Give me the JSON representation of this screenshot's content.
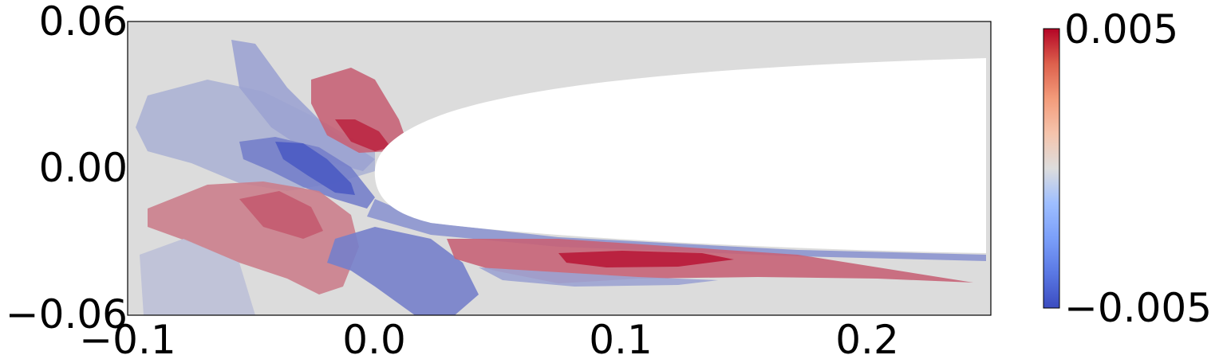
{
  "chart_data": {
    "type": "heatmap",
    "title": "",
    "xlabel": "",
    "ylabel": "",
    "xlim": [
      -0.1,
      0.25
    ],
    "ylim": [
      -0.06,
      0.06
    ],
    "x_ticks": [
      {
        "value": -0.1,
        "label": "−0.1"
      },
      {
        "value": 0.0,
        "label": "0.0"
      },
      {
        "value": 0.1,
        "label": "0.1"
      },
      {
        "value": 0.2,
        "label": "0.2"
      }
    ],
    "y_ticks": [
      {
        "value": 0.06,
        "label": "0.06"
      },
      {
        "value": 0.0,
        "label": "0.00"
      },
      {
        "value": -0.06,
        "label": "−0.06"
      }
    ],
    "colorbar": {
      "colormap": "coolwarm",
      "min": -0.005,
      "max": 0.005,
      "max_label": "0.005",
      "min_label": "−0.005"
    },
    "colors": {
      "background": "#dcdcdc",
      "body": "#ffffff",
      "coolwarm_low": "#3b4cc0",
      "coolwarm_mid": "#dddddd",
      "coolwarm_high": "#b40426"
    },
    "grid": false,
    "legend": "none",
    "field_regions": [
      {
        "name": "upstream-upper-negative",
        "value": -0.0015
      },
      {
        "name": "upstream-upper-arm-negative",
        "value": -0.002
      },
      {
        "name": "leading-edge-upper-positive",
        "value": 0.0028
      },
      {
        "name": "leading-edge-upper-core-positive",
        "value": 0.0042
      },
      {
        "name": "leading-edge-strong-negative",
        "value": -0.0032
      },
      {
        "name": "leading-edge-core-negative",
        "value": -0.0045
      },
      {
        "name": "upstream-lower-positive",
        "value": 0.0022
      },
      {
        "name": "upstream-lower-core-positive",
        "value": 0.003
      },
      {
        "name": "lower-surface-negative-strip",
        "value": -0.0025
      },
      {
        "name": "lower-front-negative",
        "value": -0.0032
      },
      {
        "name": "wake-positive",
        "value": 0.0028
      },
      {
        "name": "wake-core-positive",
        "value": 0.0045
      },
      {
        "name": "wake-lower-negative-strip",
        "value": -0.002
      },
      {
        "name": "lower-left-light-negative",
        "value": -0.001
      }
    ]
  }
}
